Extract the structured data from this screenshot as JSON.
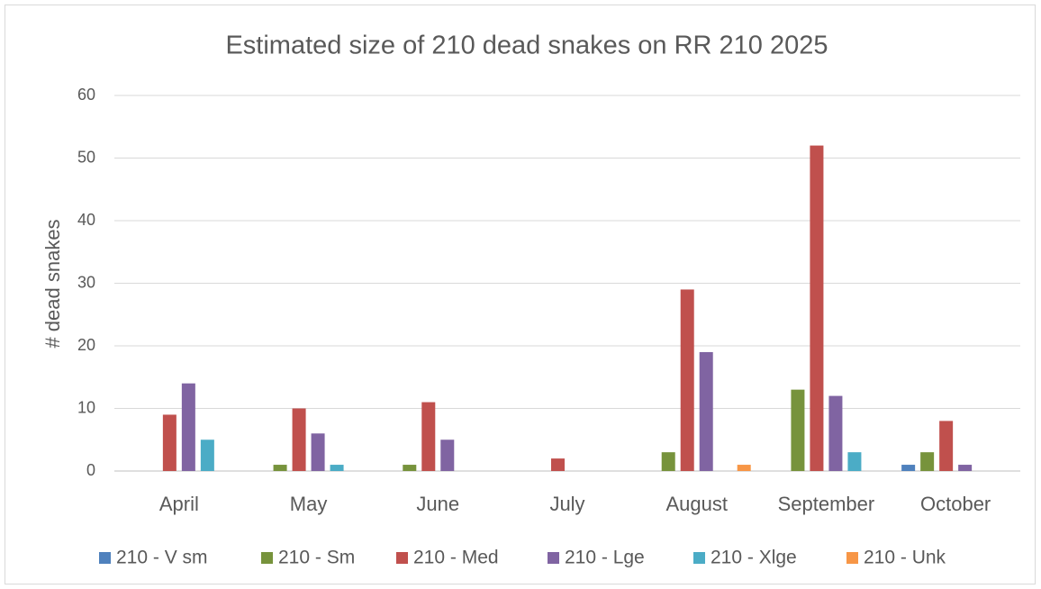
{
  "chart_data": {
    "type": "bar",
    "title": "Estimated size of 210 dead snakes on RR 210 2025",
    "y_label": "# dead snakes",
    "categories": [
      "April",
      "May",
      "June",
      "July",
      "August",
      "September",
      "October"
    ],
    "series": [
      {
        "name": "210 - V sm",
        "color": "#4f81bd",
        "values": [
          0,
          0,
          0,
          0,
          0,
          0,
          1
        ]
      },
      {
        "name": "210 - Sm",
        "color": "#77933c",
        "values": [
          0,
          1,
          1,
          0,
          3,
          13,
          3
        ]
      },
      {
        "name": "210 - Med",
        "color": "#c0504d",
        "values": [
          9,
          10,
          11,
          2,
          29,
          52,
          8
        ]
      },
      {
        "name": "210 - Lge",
        "color": "#8064a2",
        "values": [
          14,
          6,
          5,
          0,
          19,
          12,
          1
        ]
      },
      {
        "name": "210 - Xlge",
        "color": "#4bacc6",
        "values": [
          5,
          1,
          0,
          0,
          0,
          3,
          0
        ]
      },
      {
        "name": "210 - Unk",
        "color": "#f79646",
        "values": [
          0,
          0,
          0,
          0,
          1,
          0,
          0
        ]
      }
    ],
    "ylim": [
      0,
      60
    ],
    "yticks": [
      0,
      10,
      20,
      30,
      40,
      50,
      60
    ],
    "grid": true,
    "legend": "bottom"
  }
}
